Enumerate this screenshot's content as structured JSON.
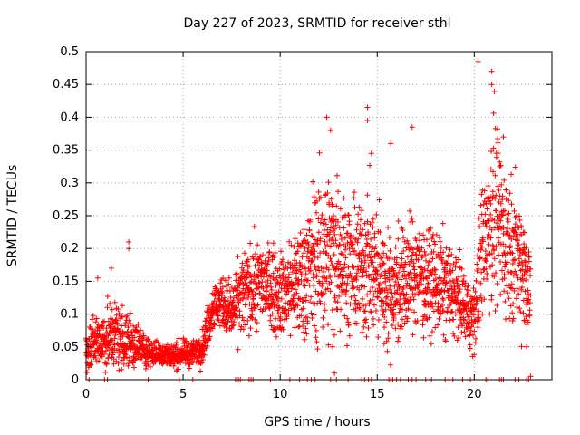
{
  "chart_data": {
    "type": "scatter",
    "title": "Day 227 of 2023, SRMTID for receiver sthl",
    "xlabel": "GPS time / hours",
    "ylabel": "SRMTID / TECUs",
    "xlim": [
      0,
      24
    ],
    "ylim": [
      0,
      0.5
    ],
    "grid": true,
    "marker": "+",
    "color": "#ff0000",
    "x_ticks": [
      0,
      5,
      10,
      15,
      20
    ],
    "x_tick_labels": [
      "0",
      "5",
      "10",
      "15",
      "20"
    ],
    "y_ticks": [
      0,
      0.05,
      0.1,
      0.15,
      0.2,
      0.25,
      0.3,
      0.35,
      0.4,
      0.45,
      0.5
    ],
    "y_tick_labels": [
      "0",
      "0.05",
      "0.1",
      "0.15",
      "0.2",
      "0.25",
      "0.3",
      "0.35",
      "0.4",
      "0.45",
      "0.5"
    ],
    "envelope": {
      "x": [
        0,
        0.5,
        1,
        1.5,
        2,
        2.5,
        3,
        3.5,
        4,
        4.5,
        5,
        5.5,
        6,
        6.5,
        7,
        7.5,
        8,
        8.5,
        9,
        9.5,
        10,
        10.5,
        11,
        11.5,
        12,
        12.5,
        13,
        13.5,
        14,
        14.5,
        15,
        15.5,
        16,
        16.5,
        17,
        17.5,
        18,
        18.5,
        19,
        19.5,
        20,
        20.5,
        21,
        21.5,
        22,
        22.5,
        23
      ],
      "center": [
        0.04,
        0.06,
        0.06,
        0.07,
        0.06,
        0.055,
        0.045,
        0.04,
        0.04,
        0.035,
        0.04,
        0.04,
        0.05,
        0.11,
        0.12,
        0.1,
        0.13,
        0.14,
        0.15,
        0.14,
        0.13,
        0.14,
        0.15,
        0.17,
        0.18,
        0.19,
        0.2,
        0.17,
        0.17,
        0.18,
        0.16,
        0.14,
        0.14,
        0.15,
        0.17,
        0.15,
        0.15,
        0.14,
        0.13,
        0.11,
        0.09,
        0.22,
        0.26,
        0.22,
        0.2,
        0.18,
        0.12
      ],
      "spread": [
        0.025,
        0.035,
        0.04,
        0.04,
        0.04,
        0.03,
        0.02,
        0.015,
        0.015,
        0.015,
        0.015,
        0.015,
        0.02,
        0.03,
        0.03,
        0.04,
        0.05,
        0.05,
        0.05,
        0.05,
        0.05,
        0.06,
        0.07,
        0.09,
        0.1,
        0.1,
        0.09,
        0.08,
        0.08,
        0.09,
        0.08,
        0.07,
        0.07,
        0.07,
        0.07,
        0.06,
        0.06,
        0.06,
        0.05,
        0.04,
        0.04,
        0.1,
        0.11,
        0.1,
        0.08,
        0.08,
        0.06
      ]
    },
    "notable_points": [
      {
        "x": 20.2,
        "y": 0.485
      },
      {
        "x": 20.9,
        "y": 0.47
      },
      {
        "x": 20.9,
        "y": 0.45
      },
      {
        "x": 14.5,
        "y": 0.415
      },
      {
        "x": 14.5,
        "y": 0.395
      },
      {
        "x": 12.4,
        "y": 0.4
      },
      {
        "x": 12.6,
        "y": 0.38
      },
      {
        "x": 16.8,
        "y": 0.385
      },
      {
        "x": 21.5,
        "y": 0.37
      },
      {
        "x": 15.7,
        "y": 0.36
      },
      {
        "x": 14.7,
        "y": 0.345
      },
      {
        "x": 2.2,
        "y": 0.21
      },
      {
        "x": 2.2,
        "y": 0.2
      },
      {
        "x": 1.3,
        "y": 0.17
      },
      {
        "x": 0.6,
        "y": 0.155
      },
      {
        "x": 22.6,
        "y": 0.09
      },
      {
        "x": 22.7,
        "y": 0.05
      },
      {
        "x": 12.7,
        "y": 0.05
      },
      {
        "x": 12.8,
        "y": 0.01
      },
      {
        "x": 22.9,
        "y": 0.005
      }
    ],
    "zero_points_x": [
      0.15,
      0.95,
      1.1,
      3.2,
      4.8,
      5.5,
      7.7,
      7.85,
      7.95,
      8.4,
      8.5,
      8.6,
      9.5,
      10.5,
      11.0,
      11.4,
      11.6,
      11.8,
      12.6,
      12.9,
      13.5,
      14.2,
      14.35,
      14.55,
      14.7,
      15.6,
      15.7,
      15.8,
      16.0,
      16.2,
      16.6,
      16.8,
      17.0,
      17.5,
      17.8,
      18.5,
      18.7,
      18.9,
      19.4,
      19.8,
      20.6,
      20.7,
      21.3,
      21.4,
      21.5,
      22.1,
      22.3,
      22.7,
      22.8
    ]
  }
}
